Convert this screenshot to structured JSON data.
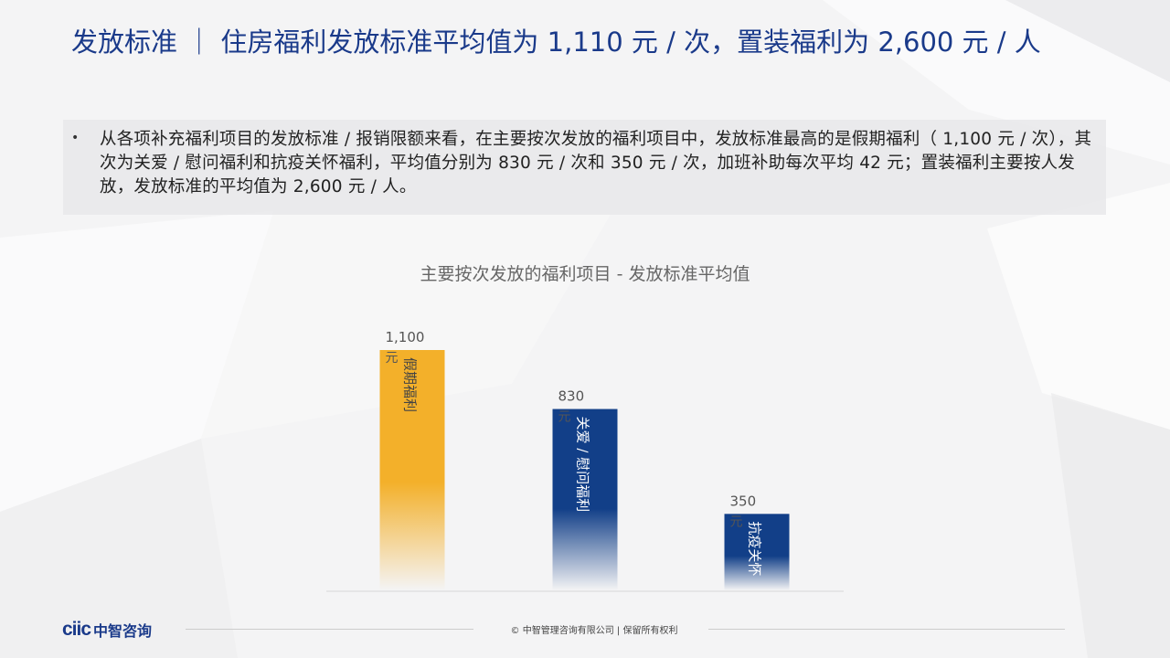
{
  "title": "发放标准 ｜ 住房福利发放标准平均值为 1,110 元 / 次，置装福利为 2,600 元 / 人",
  "summary": {
    "bullet": "•",
    "text": "从各项补充福利项目的发放标准 / 报销限额来看，在主要按次发放的福利项目中，发放标准最高的是假期福利（ 1,100 元 / 次），其次为关爱 / 慰问福利和抗疫关怀福利，平均值分别为 830 元 / 次和 350 元 / 次，加班补助每次平均 42 元；置装福利主要按人发放，发放标准的平均值为 2,600 元 / 人。"
  },
  "chart_data": {
    "type": "bar",
    "title": "主要按次发放的福利项目 - 发放标准平均值",
    "categories": [
      "假期福利",
      "关爱 / 慰问福利",
      "抗疫关怀"
    ],
    "values": [
      1100,
      830,
      350
    ],
    "value_labels": [
      "1,100",
      "830",
      "350"
    ],
    "unit": "元",
    "colors": [
      "#f3b02a",
      "#123f88",
      "#123f88"
    ],
    "ylim": [
      0,
      1100
    ],
    "grid": false,
    "legend": "none"
  },
  "footer": {
    "logo_mark": "ciic",
    "logo_name": "中智咨询",
    "copyright": "© 中智管理咨询有限公司 | 保留所有权利"
  }
}
